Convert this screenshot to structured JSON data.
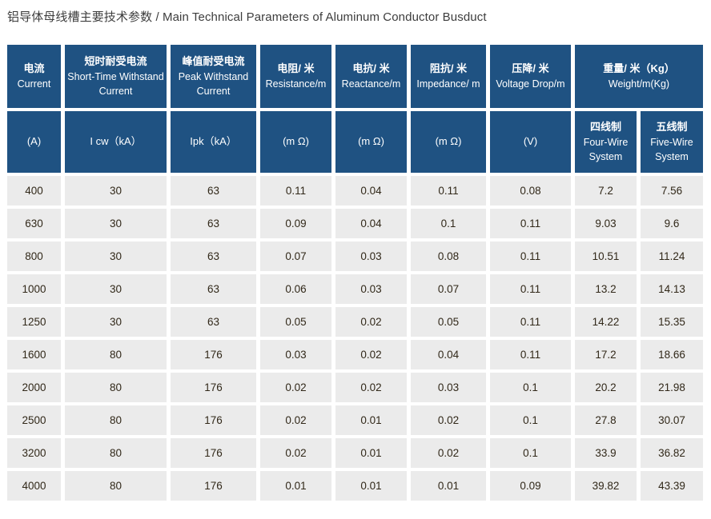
{
  "title": "铝导体母线槽主要技术参数 / Main Technical Parameters of Aluminum Conductor Busduct",
  "table": {
    "header_row1": [
      {
        "zh": "电流",
        "en": "Current"
      },
      {
        "zh": "短时耐受电流",
        "en": "Short-Time Withstand Current"
      },
      {
        "zh": "峰值耐受电流",
        "en": "Peak Withstand Current"
      },
      {
        "zh": "电阻/ 米",
        "en": "Resistance/m"
      },
      {
        "zh": "电抗/ 米",
        "en": "Reactance/m"
      },
      {
        "zh": "阻抗/ 米",
        "en": "Impedance/ m"
      },
      {
        "zh": "压降/ 米",
        "en": "Voltage Drop/m"
      },
      {
        "zh": "重量/ 米（Kg）",
        "en": "Weight/m(Kg)"
      }
    ],
    "header_row2": [
      {
        "label": "(A)"
      },
      {
        "label": "I cw（kA）"
      },
      {
        "label": "Ipk（kA）"
      },
      {
        "label": "(m Ω)"
      },
      {
        "label": "(m Ω)"
      },
      {
        "label": "(m Ω)"
      },
      {
        "label": "(V)"
      },
      {
        "zh": "四线制",
        "en": "Four-Wire System"
      },
      {
        "zh": "五线制",
        "en": "Five-Wire System"
      }
    ],
    "rows": [
      [
        "400",
        "30",
        "63",
        "0.11",
        "0.04",
        "0.11",
        "0.08",
        "7.2",
        "7.56"
      ],
      [
        "630",
        "30",
        "63",
        "0.09",
        "0.04",
        "0.1",
        "0.11",
        "9.03",
        "9.6"
      ],
      [
        "800",
        "30",
        "63",
        "0.07",
        "0.03",
        "0.08",
        "0.11",
        "10.51",
        "11.24"
      ],
      [
        "1000",
        "30",
        "63",
        "0.06",
        "0.03",
        "0.07",
        "0.11",
        "13.2",
        "14.13"
      ],
      [
        "1250",
        "30",
        "63",
        "0.05",
        "0.02",
        "0.05",
        "0.11",
        "14.22",
        "15.35"
      ],
      [
        "1600",
        "80",
        "176",
        "0.03",
        "0.02",
        "0.04",
        "0.11",
        "17.2",
        "18.66"
      ],
      [
        "2000",
        "80",
        "176",
        "0.02",
        "0.02",
        "0.03",
        "0.1",
        "20.2",
        "21.98"
      ],
      [
        "2500",
        "80",
        "176",
        "0.02",
        "0.01",
        "0.02",
        "0.1",
        "27.8",
        "30.07"
      ],
      [
        "3200",
        "80",
        "176",
        "0.02",
        "0.01",
        "0.02",
        "0.1",
        "33.9",
        "36.82"
      ],
      [
        "4000",
        "80",
        "176",
        "0.01",
        "0.01",
        "0.01",
        "0.09",
        "39.82",
        "43.39"
      ]
    ],
    "colors": {
      "header_bg": "#1f5282",
      "cell_bg": "#ebebeb",
      "gap": "#ffffff",
      "data_text": "#312819",
      "title_text": "#3d3d3d"
    }
  }
}
